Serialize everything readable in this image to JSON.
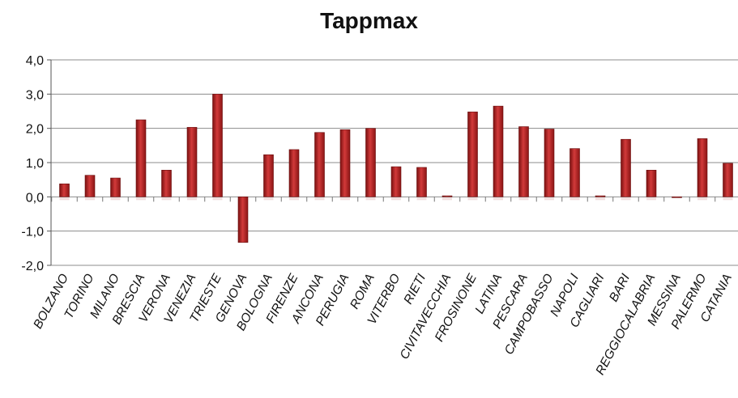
{
  "chart_data": {
    "type": "bar",
    "title": "Tappmax",
    "xlabel": "",
    "ylabel": "",
    "ylim": [
      -2.0,
      4.0
    ],
    "yticks": [
      "4,0",
      "3,0",
      "2,0",
      "1,0",
      "0,0",
      "-1,0",
      "-2,0"
    ],
    "ytick_values": [
      4,
      3,
      2,
      1,
      0,
      -1,
      -2
    ],
    "grid": true,
    "legend": "none",
    "bar_color": "#b82020",
    "categories": [
      "BOLZANO",
      "TORINO",
      "MILANO",
      "BRESCIA",
      "VERONA",
      "VENEZIA",
      "TRIESTE",
      "GENOVA",
      "BOLOGNA",
      "FIRENZE",
      "ANCONA",
      "PERUGIA",
      "ROMA",
      "VITERBO",
      "RIETI",
      "CIVITAVECCHIA",
      "FROSINONE",
      "LATINA",
      "PESCARA",
      "CAMPOBASSO",
      "NAPOLI",
      "CAGLIARI",
      "BARI",
      "REGGIOCALABRIA",
      "MESSINA",
      "PALERMO",
      "CATANIA"
    ],
    "values": [
      0.38,
      0.63,
      0.55,
      2.25,
      0.78,
      2.03,
      3.0,
      -1.33,
      1.23,
      1.38,
      1.88,
      1.96,
      2.0,
      0.88,
      0.86,
      0.03,
      2.48,
      2.65,
      2.05,
      1.98,
      1.41,
      0.03,
      1.68,
      0.78,
      -0.02,
      1.7,
      0.98
    ]
  }
}
